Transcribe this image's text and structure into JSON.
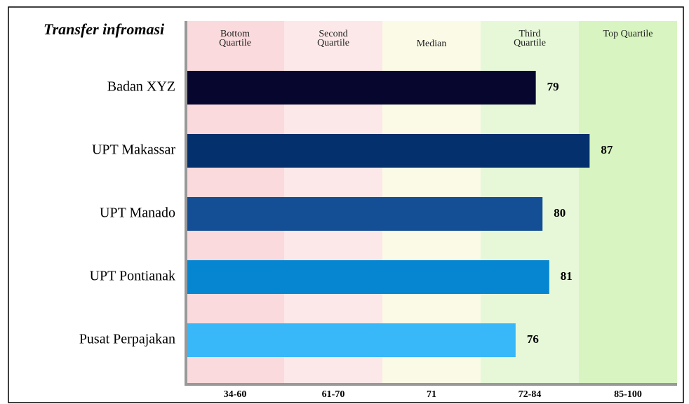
{
  "chart_data": {
    "type": "bar",
    "orientation": "horizontal",
    "title": "Transfer infromasi",
    "categories": [
      "Badan XYZ",
      "UPT Makassar",
      "UPT Manado",
      "UPT Pontianak",
      "Pusat Perpajakan"
    ],
    "values": [
      79,
      87,
      80,
      81,
      76
    ],
    "colors": [
      "#06062e",
      "#04306e",
      "#144e94",
      "#0686d0",
      "#38b8f8"
    ],
    "xlim": [
      27,
      100
    ],
    "bands": [
      {
        "name": "Bottom Quartile",
        "range": "34-60",
        "color": "#fadadc"
      },
      {
        "name": "Second Quartile",
        "range": "61-70",
        "color": "#fce8e8"
      },
      {
        "name": "Median",
        "range": "71",
        "color": "#fafae6"
      },
      {
        "name": "Third Quartile",
        "range": "72-84",
        "color": "#e6f8d8"
      },
      {
        "name": "Top Quartile",
        "range": "85-100",
        "color": "#d8f4c0"
      }
    ]
  }
}
